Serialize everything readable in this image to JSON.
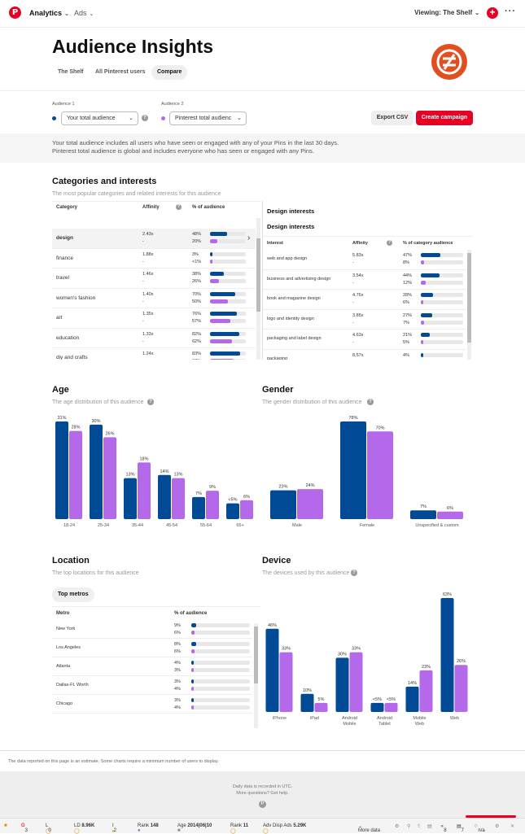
{
  "nav": {
    "analytics": "Analytics",
    "ads": "Ads",
    "viewing": "Viewing: The Shelf"
  },
  "page": {
    "title": "Audience Insights",
    "tabs": [
      "The Shelf",
      "All Pinterest users",
      "Compare"
    ]
  },
  "controls": {
    "aud1_label": "Audience 1",
    "aud1_value": "Your total audience",
    "aud2_label": "Audience 2",
    "aud2_value": "Pinterest total audienc",
    "export": "Export CSV",
    "create": "Create campaign"
  },
  "info": [
    "Your total audience includes all users who have seen or engaged with any of your Pins in the last 30 days.",
    "Pinterest total audience is global and includes everyone who has seen or engaged with any Pins."
  ],
  "colors": {
    "a1": "#004a96",
    "a2": "#b469eb",
    "red": "#e60023"
  },
  "categories": {
    "title": "Categories and interests",
    "subtitle": "The most popular categories and related interests for this audience",
    "headers": [
      "Category",
      "Affinity",
      "% of audience"
    ],
    "rows": [
      {
        "name": "design",
        "aff": "2.43x",
        "aff2": "-",
        "p1": "48%",
        "p2": "20%",
        "v1": 48,
        "v2": 20
      },
      {
        "name": "finance",
        "aff": "1.88x",
        "aff2": "-",
        "p1": "3%",
        "p2": "<1%",
        "v1": 3,
        "v2": 1
      },
      {
        "name": "travel",
        "aff": "1.46x",
        "aff2": "-",
        "p1": "38%",
        "p2": "26%",
        "v1": 38,
        "v2": 26
      },
      {
        "name": "women's fashion",
        "aff": "1.40x",
        "aff2": "-",
        "p1": "70%",
        "p2": "50%",
        "v1": 70,
        "v2": 50
      },
      {
        "name": "art",
        "aff": "1.35x",
        "aff2": "-",
        "p1": "76%",
        "p2": "57%",
        "v1": 76,
        "v2": 57
      },
      {
        "name": "education",
        "aff": "1.33x",
        "aff2": "-",
        "p1": "82%",
        "p2": "62%",
        "v1": 82,
        "v2": 62
      },
      {
        "name": "diy and crafts",
        "aff": "1.24x",
        "aff2": "-",
        "p1": "83%",
        "p2": "67%",
        "v1": 83,
        "v2": 67
      }
    ]
  },
  "interests": {
    "title": "Design interests",
    "headers": [
      "Interest",
      "Affinity",
      "% of category audience"
    ],
    "rows": [
      {
        "name": "web and app design",
        "aff": "5.83x",
        "aff2": "-",
        "p1": "47%",
        "p2": "8%",
        "v1": 47,
        "v2": 8
      },
      {
        "name": "business and advertising design",
        "aff": "3.54x",
        "aff2": "-",
        "p1": "44%",
        "p2": "12%",
        "v1": 44,
        "v2": 12
      },
      {
        "name": "book and magazine design",
        "aff": "4.76x",
        "aff2": "-",
        "p1": "28%",
        "p2": "6%",
        "v1": 28,
        "v2": 6
      },
      {
        "name": "logo and identity design",
        "aff": "3.85x",
        "aff2": "-",
        "p1": "27%",
        "p2": "7%",
        "v1": 27,
        "v2": 7
      },
      {
        "name": "packaging and label design",
        "aff": "4.63x",
        "aff2": "-",
        "p1": "21%",
        "p2": "5%",
        "v1": 21,
        "v2": 5
      },
      {
        "name": "packaging",
        "aff": "8.57x",
        "aff2": "-",
        "p1": "4%",
        "p2": "<1%",
        "v1": 4,
        "v2": 1
      }
    ]
  },
  "age": {
    "title": "Age",
    "subtitle": "The age distribution of this audience"
  },
  "gender": {
    "title": "Gender",
    "subtitle": "The gender distribution of this audience"
  },
  "location": {
    "title": "Location",
    "subtitle": "The top locations for this audience",
    "pill": "Top metros",
    "headers": [
      "Metro",
      "% of audience"
    ],
    "rows": [
      {
        "name": "New York",
        "p1": "9%",
        "p2": "6%",
        "v1": 9,
        "v2": 6
      },
      {
        "name": "Los Angeles",
        "p1": "8%",
        "p2": "6%",
        "v1": 8,
        "v2": 6
      },
      {
        "name": "Atlanta",
        "p1": "4%",
        "p2": "3%",
        "v1": 4,
        "v2": 3
      },
      {
        "name": "Dallas-Ft. Worth",
        "p1": "3%",
        "p2": "4%",
        "v1": 3,
        "v2": 4
      },
      {
        "name": "Chicago",
        "p1": "3%",
        "p2": "4%",
        "v1": 3,
        "v2": 4
      }
    ]
  },
  "device": {
    "title": "Device",
    "subtitle": "The devices used by this audience"
  },
  "chart_data": [
    {
      "type": "bar",
      "title": "Age",
      "categories": [
        "18-24",
        "25-34",
        "35-44",
        "45-54",
        "55-64",
        "65+"
      ],
      "series": [
        {
          "values": [
            31,
            30,
            13,
            14,
            7,
            5
          ],
          "labels": [
            "31%",
            "30%",
            "13%",
            "14%",
            "7%",
            "<5%"
          ]
        },
        {
          "values": [
            28,
            26,
            18,
            13,
            9,
            6
          ],
          "labels": [
            "28%",
            "26%",
            "18%",
            "13%",
            "9%",
            "6%"
          ]
        }
      ]
    },
    {
      "type": "bar",
      "title": "Gender",
      "categories": [
        "Male",
        "Female",
        "Unspecified & custom"
      ],
      "series": [
        {
          "values": [
            23,
            78,
            7
          ],
          "labels": [
            "23%",
            "78%",
            "7%"
          ]
        },
        {
          "values": [
            24,
            70,
            6
          ],
          "labels": [
            "24%",
            "70%",
            "6%"
          ]
        }
      ]
    },
    {
      "type": "bar",
      "title": "Device",
      "categories": [
        "iPhone",
        "iPad",
        "Android Mobile",
        "Android Tablet",
        "Mobile Web",
        "Web"
      ],
      "series": [
        {
          "values": [
            46,
            10,
            30,
            5,
            14,
            63
          ],
          "labels": [
            "46%",
            "10%",
            "30%",
            "<5%",
            "14%",
            "63%"
          ]
        },
        {
          "values": [
            33,
            5,
            33,
            5,
            23,
            26
          ],
          "labels": [
            "33%",
            "5%",
            "33%",
            "<5%",
            "23%",
            "26%"
          ]
        }
      ]
    }
  ],
  "footer": {
    "note": "The data reported on this page is an estimate. Some charts require a minimum number of users to display.",
    "l1": "Daily data is recorded in UTC.",
    "l2": "More questions? Get help."
  },
  "statusbar": {
    "g": "3",
    "l": "0",
    "ld": "8.96K",
    "i": "2",
    "rank": "148",
    "age": "2014|06|10",
    "rank2": "11",
    "adv": "5.29K",
    "more": "More data",
    "n8": "8",
    "n7": "7",
    "na": "n/a"
  }
}
